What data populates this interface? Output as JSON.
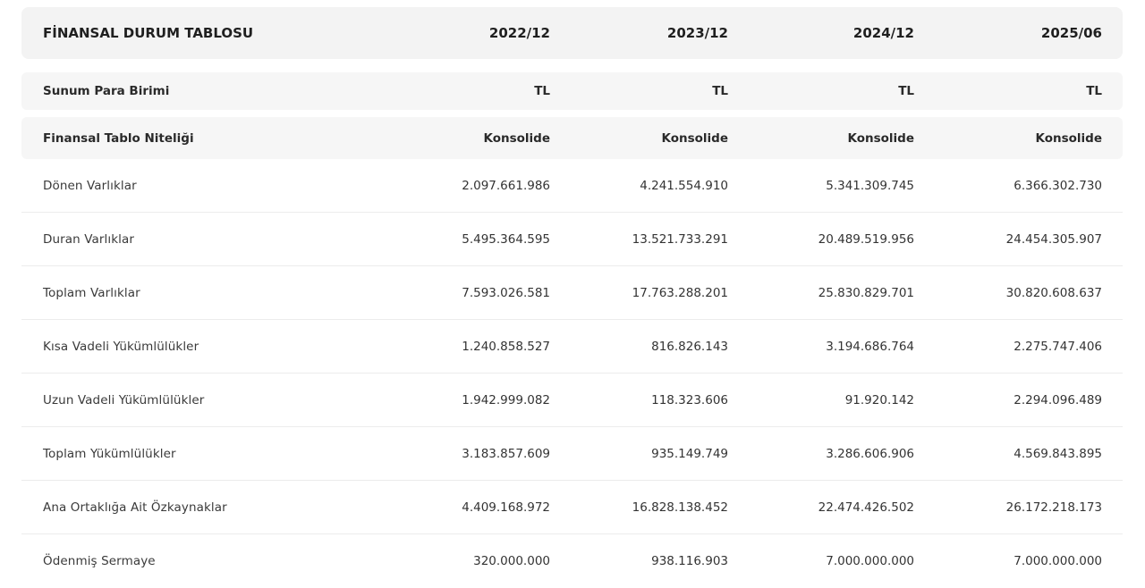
{
  "table": {
    "title": "FİNANSAL DURUM TABLOSU",
    "periods": [
      "2022/12",
      "2023/12",
      "2024/12",
      "2025/06"
    ],
    "currency_row": {
      "label": "Sunum Para Birimi",
      "values": [
        "TL",
        "TL",
        "TL",
        "TL"
      ]
    },
    "nature_row": {
      "label": "Finansal Tablo Niteliği",
      "values": [
        "Konsolide",
        "Konsolide",
        "Konsolide",
        "Konsolide"
      ]
    },
    "rows": [
      {
        "label": "Dönen Varlıklar",
        "values": [
          "2.097.661.986",
          "4.241.554.910",
          "5.341.309.745",
          "6.366.302.730"
        ]
      },
      {
        "label": "Duran Varlıklar",
        "values": [
          "5.495.364.595",
          "13.521.733.291",
          "20.489.519.956",
          "24.454.305.907"
        ]
      },
      {
        "label": "Toplam Varlıklar",
        "values": [
          "7.593.026.581",
          "17.763.288.201",
          "25.830.829.701",
          "30.820.608.637"
        ]
      },
      {
        "label": "Kısa Vadeli Yükümlülükler",
        "values": [
          "1.240.858.527",
          "816.826.143",
          "3.194.686.764",
          "2.275.747.406"
        ]
      },
      {
        "label": "Uzun Vadeli Yükümlülükler",
        "values": [
          "1.942.999.082",
          "118.323.606",
          "91.920.142",
          "2.294.096.489"
        ]
      },
      {
        "label": "Toplam Yükümlülükler",
        "values": [
          "3.183.857.609",
          "935.149.749",
          "3.286.606.906",
          "4.569.843.895"
        ]
      },
      {
        "label": "Ana Ortaklığa Ait Özkaynaklar",
        "values": [
          "4.409.168.972",
          "16.828.138.452",
          "22.474.426.502",
          "26.172.218.173"
        ]
      },
      {
        "label": "Ödenmiş Sermaye",
        "values": [
          "320.000.000",
          "938.116.903",
          "7.000.000.000",
          "7.000.000.000"
        ]
      }
    ]
  }
}
